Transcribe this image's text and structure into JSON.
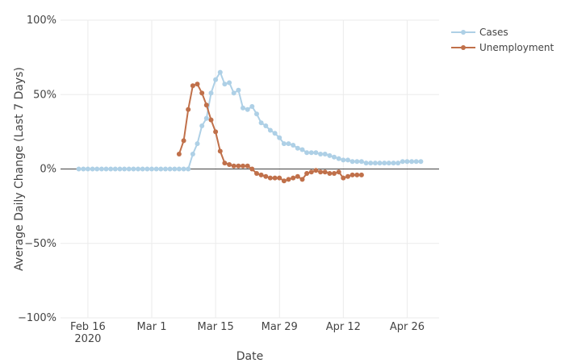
{
  "chart_data": {
    "type": "line",
    "title": "",
    "xlabel": "Date",
    "ylabel": "Average Daily Change (Last 7 Days)",
    "x_range": [
      "2020-02-10",
      "2020-05-03"
    ],
    "ylim": [
      -100,
      100
    ],
    "y_unit": "%",
    "grid": true,
    "legend_position": "top-right",
    "zero_line": true,
    "x_ticks": [
      {
        "date": "2020-02-16",
        "label": "Feb 16",
        "sublabel": "2020"
      },
      {
        "date": "2020-03-01",
        "label": "Mar 1",
        "sublabel": ""
      },
      {
        "date": "2020-03-15",
        "label": "Mar 15",
        "sublabel": ""
      },
      {
        "date": "2020-03-29",
        "label": "Mar 29",
        "sublabel": ""
      },
      {
        "date": "2020-04-12",
        "label": "Apr 12",
        "sublabel": ""
      },
      {
        "date": "2020-04-26",
        "label": "Apr 26",
        "sublabel": ""
      }
    ],
    "y_ticks": [
      {
        "value": 100,
        "label": "100%"
      },
      {
        "value": 50,
        "label": "50%"
      },
      {
        "value": 0,
        "label": "0%"
      },
      {
        "value": -50,
        "label": "−50%"
      },
      {
        "value": -100,
        "label": "−100%"
      }
    ],
    "series": [
      {
        "name": "Cases",
        "color": "#aed0e6",
        "x": [
          "2020-02-14",
          "2020-02-15",
          "2020-02-16",
          "2020-02-17",
          "2020-02-18",
          "2020-02-19",
          "2020-02-20",
          "2020-02-21",
          "2020-02-22",
          "2020-02-23",
          "2020-02-24",
          "2020-02-25",
          "2020-02-26",
          "2020-02-27",
          "2020-02-28",
          "2020-02-29",
          "2020-03-01",
          "2020-03-02",
          "2020-03-03",
          "2020-03-04",
          "2020-03-05",
          "2020-03-06",
          "2020-03-07",
          "2020-03-08",
          "2020-03-09",
          "2020-03-10",
          "2020-03-11",
          "2020-03-12",
          "2020-03-13",
          "2020-03-14",
          "2020-03-15",
          "2020-03-16",
          "2020-03-17",
          "2020-03-18",
          "2020-03-19",
          "2020-03-20",
          "2020-03-21",
          "2020-03-22",
          "2020-03-23",
          "2020-03-24",
          "2020-03-25",
          "2020-03-26",
          "2020-03-27",
          "2020-03-28",
          "2020-03-29",
          "2020-03-30",
          "2020-03-31",
          "2020-04-01",
          "2020-04-02",
          "2020-04-03",
          "2020-04-04",
          "2020-04-05",
          "2020-04-06",
          "2020-04-07",
          "2020-04-08",
          "2020-04-09",
          "2020-04-10",
          "2020-04-11",
          "2020-04-12",
          "2020-04-13",
          "2020-04-14",
          "2020-04-15",
          "2020-04-16",
          "2020-04-17",
          "2020-04-18",
          "2020-04-19",
          "2020-04-20",
          "2020-04-21",
          "2020-04-22",
          "2020-04-23",
          "2020-04-24",
          "2020-04-25",
          "2020-04-26",
          "2020-04-27",
          "2020-04-28",
          "2020-04-29"
        ],
        "values": [
          0,
          0,
          0,
          0,
          0,
          0,
          0,
          0,
          0,
          0,
          0,
          0,
          0,
          0,
          0,
          0,
          0,
          0,
          0,
          0,
          0,
          0,
          0,
          0,
          0,
          10,
          17,
          29,
          34,
          51,
          60,
          65,
          57,
          58,
          51,
          53,
          41,
          40,
          42,
          37,
          31,
          29,
          26,
          24,
          21,
          17,
          17,
          16,
          14,
          13,
          11,
          11,
          11,
          10,
          10,
          9,
          8,
          7,
          6,
          6,
          5,
          5,
          5,
          4,
          4,
          4,
          4,
          4,
          4,
          4,
          4,
          5,
          5,
          5,
          5,
          5
        ]
      },
      {
        "name": "Unemployment",
        "color": "#c0704a",
        "x": [
          "2020-03-07",
          "2020-03-08",
          "2020-03-09",
          "2020-03-10",
          "2020-03-11",
          "2020-03-12",
          "2020-03-13",
          "2020-03-14",
          "2020-03-15",
          "2020-03-16",
          "2020-03-17",
          "2020-03-18",
          "2020-03-19",
          "2020-03-20",
          "2020-03-21",
          "2020-03-22",
          "2020-03-23",
          "2020-03-24",
          "2020-03-25",
          "2020-03-26",
          "2020-03-27",
          "2020-03-28",
          "2020-03-29",
          "2020-03-30",
          "2020-03-31",
          "2020-04-01",
          "2020-04-02",
          "2020-04-03",
          "2020-04-04",
          "2020-04-05",
          "2020-04-06",
          "2020-04-07",
          "2020-04-08",
          "2020-04-09",
          "2020-04-10",
          "2020-04-11",
          "2020-04-12",
          "2020-04-13",
          "2020-04-14",
          "2020-04-15",
          "2020-04-16"
        ],
        "values": [
          10,
          19,
          40,
          56,
          57,
          51,
          43,
          33,
          25,
          12,
          4,
          3,
          2,
          2,
          2,
          2,
          0,
          -3,
          -4,
          -5,
          -6,
          -6,
          -6,
          -8,
          -7,
          -6,
          -5,
          -7,
          -3,
          -2,
          -1,
          -2,
          -2,
          -3,
          -3,
          -2,
          -6,
          -5,
          -4,
          -4,
          -4
        ]
      }
    ]
  }
}
